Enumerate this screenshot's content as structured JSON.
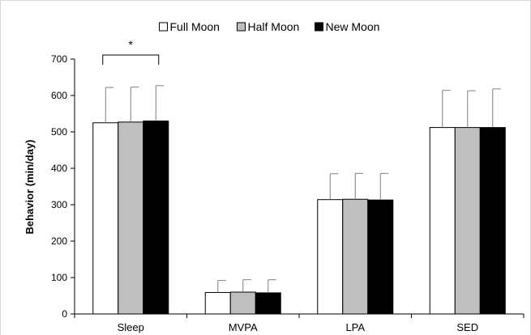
{
  "chart_data": {
    "type": "bar",
    "title": "",
    "xlabel": "",
    "ylabel": "Behavior (min/day)",
    "ylim": [
      0,
      700
    ],
    "yticks": [
      0,
      100,
      200,
      300,
      400,
      500,
      600,
      700
    ],
    "categories": [
      "Sleep",
      "MVPA",
      "LPA",
      "SED"
    ],
    "series": [
      {
        "name": "Full Moon",
        "color": "#ffffff",
        "values": [
          525,
          59,
          314,
          512
        ],
        "error": [
          97,
          33,
          71,
          102
        ]
      },
      {
        "name": "Half Moon",
        "color": "#bfbfbf",
        "values": [
          527,
          60,
          315,
          512
        ],
        "error": [
          96,
          34,
          71,
          101
        ]
      },
      {
        "name": "New Moon",
        "color": "#000000",
        "values": [
          530,
          58,
          313,
          512
        ],
        "error": [
          97,
          36,
          73,
          106
        ]
      }
    ],
    "grid": false,
    "legend_position": "top",
    "annotations": [
      {
        "text": "*",
        "type": "significance-bracket",
        "category": "Sleep",
        "from_series": "Full Moon",
        "to_series": "New Moon"
      }
    ]
  }
}
